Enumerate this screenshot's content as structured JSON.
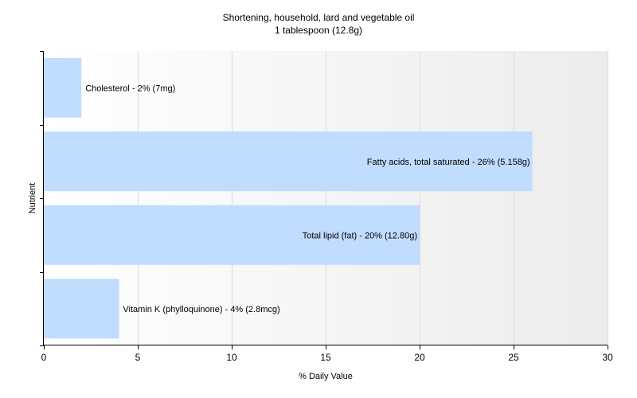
{
  "chart_data": {
    "type": "bar",
    "orientation": "horizontal",
    "title": "Shortening, household, lard and vegetable oil",
    "subtitle": "1 tablespoon (12.8g)",
    "xlabel": "% Daily Value",
    "ylabel": "Nutrient",
    "xlim": [
      0,
      30
    ],
    "xticks": [
      "0",
      "5",
      "10",
      "15",
      "20",
      "25",
      "30"
    ],
    "grid": true,
    "bar_color": "#c0dcff",
    "bars": [
      {
        "value": 2,
        "label": "Cholesterol - 2% (7mg)"
      },
      {
        "value": 26,
        "label": "Fatty acids, total saturated - 26% (5.158g)"
      },
      {
        "value": 20,
        "label": "Total lipid (fat) - 20% (12.80g)"
      },
      {
        "value": 4,
        "label": "Vitamin K (phylloquinone) - 4% (2.8mcg)"
      }
    ]
  }
}
